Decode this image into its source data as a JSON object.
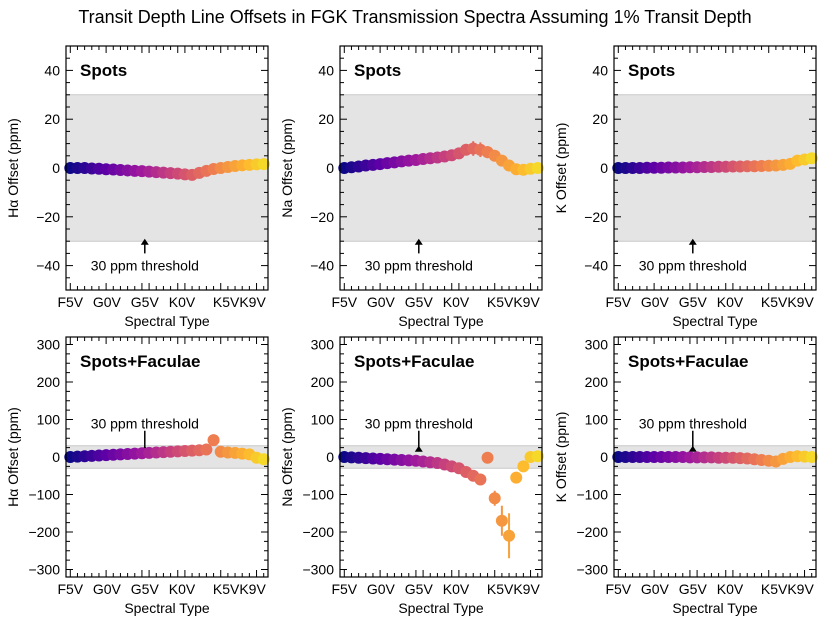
{
  "title": "Transit Depth Line Offsets in FGK Transmission Spectra Assuming 1% Transit Depth",
  "x_ticks": [
    "F5V",
    "G0V",
    "G5V",
    "K0V",
    "K5V",
    "K9V"
  ],
  "x_ticks_shown_on_axis": [
    "F5V",
    "G0V",
    "G5V",
    "K0V",
    "K5VK9V"
  ],
  "xlabel": "Spectral Type",
  "threshold_text": "30 ppm threshold",
  "threshold_ppm": 30,
  "colors": {
    "band": "#e4e4e4",
    "band_line": "#c8c8c8",
    "colormap": [
      "#0d0887",
      "#5c01a6",
      "#9c179e",
      "#cc4778",
      "#ed7953",
      "#fdb42f",
      "#f0f921"
    ]
  },
  "chart_data": [
    {
      "type": "scatter",
      "panel": "Spots",
      "ylabel": "Hα Offset (ppm)",
      "ylim": [
        -50,
        50
      ],
      "yticks": [
        -40,
        -20,
        0,
        20,
        40
      ],
      "x": [
        0,
        1,
        2,
        3,
        4,
        5,
        6,
        7,
        8,
        9,
        10,
        11,
        12,
        13,
        14,
        15,
        16,
        17,
        18,
        19,
        20,
        21,
        22,
        23,
        24,
        25,
        26,
        27
      ],
      "values": [
        0,
        0,
        0,
        -0.2,
        -0.3,
        -0.5,
        -0.6,
        -0.8,
        -1,
        -1.2,
        -1.3,
        -1.5,
        -1.7,
        -1.9,
        -2.1,
        -2.3,
        -2.6,
        -2.8,
        -2,
        -1.2,
        -0.4,
        0,
        0.4,
        0.8,
        1.1,
        1.3,
        1.5,
        1.6
      ],
      "errors": [
        0,
        0,
        0,
        0,
        0,
        0,
        0,
        0,
        0,
        0,
        0,
        0,
        0,
        0,
        0,
        0,
        0,
        0,
        0,
        0,
        0,
        0,
        0,
        0,
        0,
        0,
        0,
        0
      ]
    },
    {
      "type": "scatter",
      "panel": "Spots",
      "ylabel": "Na Offset (ppm)",
      "ylim": [
        -50,
        50
      ],
      "yticks": [
        -40,
        -20,
        0,
        20,
        40
      ],
      "x": [
        0,
        1,
        2,
        3,
        4,
        5,
        6,
        7,
        8,
        9,
        10,
        11,
        12,
        13,
        14,
        15,
        16,
        17,
        18,
        19,
        20,
        21,
        22,
        23,
        24,
        25,
        26,
        27
      ],
      "values": [
        0,
        0.3,
        0.6,
        1,
        1.3,
        1.6,
        2,
        2.3,
        2.7,
        3,
        3.3,
        3.7,
        4,
        4.3,
        4.7,
        5.2,
        6,
        7.5,
        8,
        7.5,
        6.5,
        5,
        3,
        1,
        -0.5,
        -0.7,
        -0.3,
        0
      ],
      "errors": [
        0,
        0,
        0,
        0,
        0,
        0,
        0,
        0,
        0,
        0,
        0,
        0,
        0,
        0.5,
        0.5,
        0.8,
        1.2,
        2,
        3,
        3,
        2.5,
        2,
        1.5,
        0.8,
        0.5,
        0.4,
        0,
        0
      ]
    },
    {
      "type": "scatter",
      "panel": "Spots",
      "ylabel": "K Offset (ppm)",
      "ylim": [
        -50,
        50
      ],
      "yticks": [
        -40,
        -20,
        0,
        20,
        40
      ],
      "x": [
        0,
        1,
        2,
        3,
        4,
        5,
        6,
        7,
        8,
        9,
        10,
        11,
        12,
        13,
        14,
        15,
        16,
        17,
        18,
        19,
        20,
        21,
        22,
        23,
        24,
        25,
        26,
        27
      ],
      "values": [
        0,
        0,
        0,
        0,
        0.1,
        0.1,
        0.1,
        0.2,
        0.2,
        0.2,
        0.3,
        0.3,
        0.4,
        0.4,
        0.5,
        0.5,
        0.6,
        0.6,
        0.7,
        0.7,
        0.8,
        0.9,
        1,
        1.3,
        1.7,
        3,
        3.5,
        4
      ],
      "errors": [
        0,
        0,
        0,
        0,
        0,
        0,
        0,
        0,
        0,
        0,
        0,
        0,
        0,
        0,
        0,
        0,
        0,
        0,
        0,
        0,
        0,
        0,
        0,
        0,
        0,
        0,
        0,
        0
      ]
    },
    {
      "type": "scatter",
      "panel": "Spots+Faculae",
      "ylabel": "Hα Offset (ppm)",
      "ylim": [
        -320,
        320
      ],
      "yticks": [
        -300,
        -200,
        -100,
        0,
        100,
        200,
        300
      ],
      "x": [
        0,
        1,
        2,
        3,
        4,
        5,
        6,
        7,
        8,
        9,
        10,
        11,
        12,
        13,
        14,
        15,
        16,
        17,
        18,
        19,
        20,
        21,
        22,
        23,
        24,
        25,
        26,
        27
      ],
      "values": [
        0,
        1,
        2,
        3,
        4,
        5,
        6,
        7,
        8,
        9,
        10,
        11,
        12,
        13,
        14,
        15,
        16,
        17,
        18,
        20,
        45,
        14,
        12,
        11,
        9,
        7,
        -2,
        -6
      ],
      "errors": [
        0,
        0,
        0,
        0,
        0,
        0,
        0,
        0,
        0,
        0,
        0,
        0,
        0,
        0,
        0,
        0,
        0,
        0,
        0,
        0,
        0,
        0,
        0,
        0,
        0,
        0,
        0,
        0
      ]
    },
    {
      "type": "scatter",
      "panel": "Spots+Faculae",
      "ylabel": "Na Offset (ppm)",
      "ylim": [
        -320,
        320
      ],
      "yticks": [
        -300,
        -200,
        -100,
        0,
        100,
        200,
        300
      ],
      "x": [
        0,
        1,
        2,
        3,
        4,
        5,
        6,
        7,
        8,
        9,
        10,
        11,
        12,
        13,
        14,
        15,
        16,
        17,
        18,
        19,
        20,
        21,
        22,
        23,
        24,
        25,
        26,
        27
      ],
      "values": [
        0,
        -1,
        -2,
        -3,
        -4,
        -5,
        -6,
        -7,
        -8,
        -9,
        -10,
        -12,
        -14,
        -16,
        -20,
        -25,
        -30,
        -40,
        -50,
        -60,
        -2,
        -110,
        -170,
        -210,
        -55,
        -25,
        0,
        2
      ],
      "errors": [
        0,
        0,
        0,
        0,
        0,
        0,
        0,
        0,
        0,
        0,
        0,
        0,
        0,
        0,
        0,
        0,
        0,
        0,
        0,
        0,
        0,
        20,
        40,
        60,
        15,
        0,
        0,
        0
      ]
    },
    {
      "type": "scatter",
      "panel": "Spots+Faculae",
      "ylabel": "K Offset (ppm)",
      "ylim": [
        -320,
        320
      ],
      "yticks": [
        -300,
        -200,
        -100,
        0,
        100,
        200,
        300
      ],
      "x": [
        0,
        1,
        2,
        3,
        4,
        5,
        6,
        7,
        8,
        9,
        10,
        11,
        12,
        13,
        14,
        15,
        16,
        17,
        18,
        19,
        20,
        21,
        22,
        23,
        24,
        25,
        26,
        27
      ],
      "values": [
        0,
        0,
        0,
        0,
        0,
        0,
        0,
        0,
        0,
        0,
        -1,
        -1,
        -1,
        -1,
        -2,
        -2,
        -2,
        -3,
        -4,
        -6,
        -8,
        -10,
        -12,
        -5,
        0,
        2,
        1,
        0
      ],
      "errors": [
        0,
        0,
        0,
        0,
        0,
        0,
        0,
        0,
        0,
        0,
        0,
        0,
        0,
        0,
        0,
        0,
        0,
        0,
        0,
        0,
        0,
        0,
        0,
        0,
        0,
        0,
        0,
        0
      ]
    }
  ]
}
